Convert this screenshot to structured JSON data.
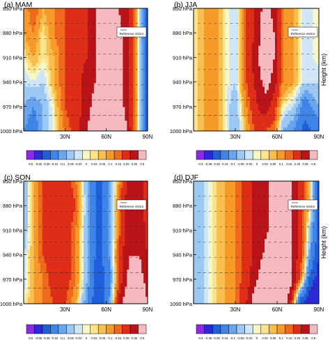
{
  "chart_data": [
    {
      "type": "heatmap",
      "panel_label": "(a) MAM",
      "y_ticks": [
        "850 hPa",
        "880 hPa",
        "910 hPa",
        "940 hPa",
        "970 hPa",
        "1000 hPa"
      ],
      "x_ticks": [
        "30N",
        "60N",
        "90N"
      ],
      "reference_label": "Reference Vector",
      "x_values": [
        0,
        7,
        14,
        22,
        30,
        38,
        46,
        52,
        60,
        68,
        75,
        82,
        90
      ],
      "levels": [
        850,
        880,
        910,
        940,
        970,
        1000
      ],
      "values": [
        [
          0.05,
          0.15,
          0.05,
          0.1,
          0.15,
          0.2,
          0.25,
          0.35,
          0.4,
          0.35,
          0.3,
          0.05,
          -0.3
        ],
        [
          0.05,
          0.1,
          0.0,
          0.1,
          0.15,
          0.2,
          0.25,
          0.35,
          0.4,
          0.4,
          0.3,
          0.05,
          -0.3
        ],
        [
          0.0,
          0.05,
          0.0,
          0.05,
          0.15,
          0.2,
          0.25,
          0.35,
          0.4,
          0.45,
          0.3,
          0.05,
          -0.3
        ],
        [
          -0.05,
          -0.02,
          -0.05,
          0.05,
          0.15,
          0.2,
          0.3,
          0.35,
          0.45,
          0.45,
          0.3,
          0.05,
          -0.3
        ],
        [
          -0.1,
          -0.15,
          -0.1,
          0.0,
          0.15,
          0.2,
          0.3,
          0.4,
          0.5,
          0.45,
          0.3,
          0.05,
          -0.3
        ],
        [
          -0.15,
          -0.2,
          -0.1,
          0.0,
          0.1,
          0.2,
          0.35,
          0.45,
          0.6,
          0.55,
          0.35,
          0.05,
          -0.3
        ]
      ]
    },
    {
      "type": "heatmap",
      "panel_label": "(b) JJA",
      "y_ticks": [
        "850 hPa",
        "880 hPa",
        "910 hPa",
        "940 hPa",
        "970 hPa",
        "1000 hPa"
      ],
      "x_ticks": [
        "30N",
        "60N",
        "90N"
      ],
      "ylabel": "Height (km)",
      "reference_label": "Reference Vector",
      "x_values": [
        0,
        7,
        14,
        22,
        30,
        38,
        46,
        52,
        58,
        64,
        72,
        80,
        90
      ],
      "levels": [
        850,
        880,
        910,
        940,
        970,
        1000
      ],
      "values": [
        [
          0.0,
          0.05,
          0.1,
          0.0,
          -0.05,
          0.15,
          0.3,
          0.4,
          0.3,
          0.1,
          0.05,
          -0.05,
          0.0
        ],
        [
          0.0,
          0.05,
          0.1,
          0.0,
          -0.05,
          0.15,
          0.3,
          0.45,
          0.35,
          0.1,
          0.05,
          -0.05,
          0.0
        ],
        [
          0.0,
          0.05,
          0.1,
          0.0,
          -0.05,
          0.15,
          0.35,
          0.45,
          0.35,
          0.1,
          0.05,
          -0.05,
          0.0
        ],
        [
          0.0,
          0.05,
          0.1,
          0.0,
          -0.05,
          0.15,
          0.3,
          0.4,
          0.3,
          0.1,
          0.05,
          -0.05,
          -0.05
        ],
        [
          0.0,
          0.05,
          0.1,
          0.0,
          -0.1,
          0.1,
          0.25,
          0.3,
          0.2,
          0.0,
          -0.05,
          -0.2,
          -0.1
        ],
        [
          0.0,
          0.05,
          0.1,
          0.0,
          -0.1,
          0.05,
          0.2,
          0.15,
          0.1,
          -0.1,
          -0.15,
          -0.3,
          -0.2
        ]
      ]
    },
    {
      "type": "heatmap",
      "panel_label": "(c) SON",
      "y_ticks": [
        "850 hPa",
        "880 hPa",
        "910 hPa",
        "940 hPa",
        "970 hPa",
        "1000 hPa"
      ],
      "x_ticks": [
        "30N",
        "60N",
        "90N"
      ],
      "reference_label": "Reference Vector",
      "x_values": [
        0,
        7,
        14,
        22,
        30,
        38,
        46,
        54,
        62,
        70,
        77,
        84,
        90
      ],
      "levels": [
        850,
        880,
        910,
        940,
        970,
        1000
      ],
      "values": [
        [
          -0.1,
          0.05,
          0.15,
          0.2,
          0.2,
          0.1,
          -0.1,
          -0.3,
          -0.15,
          0.1,
          0.3,
          0.3,
          0.2
        ],
        [
          -0.1,
          0.05,
          0.15,
          0.2,
          0.25,
          0.15,
          -0.1,
          -0.3,
          -0.15,
          0.15,
          0.35,
          0.3,
          0.2
        ],
        [
          -0.1,
          0.05,
          0.15,
          0.2,
          0.2,
          0.1,
          -0.1,
          -0.3,
          -0.15,
          0.15,
          0.35,
          0.35,
          0.2
        ],
        [
          -0.05,
          0.05,
          0.15,
          0.2,
          0.2,
          0.1,
          -0.1,
          -0.3,
          -0.15,
          0.2,
          0.35,
          0.35,
          0.25
        ],
        [
          -0.05,
          0.05,
          0.1,
          0.2,
          0.2,
          0.1,
          -0.1,
          -0.35,
          -0.2,
          0.2,
          0.4,
          0.4,
          0.3
        ],
        [
          0.0,
          0.05,
          0.1,
          0.15,
          0.15,
          0.05,
          -0.15,
          -0.35,
          -0.15,
          0.3,
          0.5,
          0.5,
          0.35
        ]
      ]
    },
    {
      "type": "heatmap",
      "panel_label": "(d) DJF",
      "y_ticks": [
        "850 hPa",
        "880 hPa",
        "910 hPa",
        "940 hPa",
        "970 hPa",
        "1000 hPa"
      ],
      "x_ticks": [
        "30N",
        "60N",
        "90N"
      ],
      "ylabel": "Height (km)",
      "reference_label": "Reference Vector",
      "x_values": [
        0,
        7,
        14,
        22,
        30,
        38,
        46,
        54,
        62,
        70,
        77,
        84,
        90
      ],
      "levels": [
        850,
        880,
        910,
        940,
        970,
        1000
      ],
      "values": [
        [
          -0.1,
          -0.05,
          0.0,
          0.05,
          0.1,
          0.2,
          0.3,
          0.35,
          0.4,
          0.35,
          0.2,
          0.0,
          -0.3
        ],
        [
          -0.1,
          -0.05,
          0.0,
          0.05,
          0.1,
          0.2,
          0.3,
          0.35,
          0.4,
          0.35,
          0.2,
          0.0,
          -0.3
        ],
        [
          -0.1,
          -0.05,
          0.0,
          0.05,
          0.1,
          0.2,
          0.3,
          0.35,
          0.4,
          0.35,
          0.2,
          -0.1,
          -0.3
        ],
        [
          -0.1,
          -0.05,
          0.0,
          0.05,
          0.1,
          0.2,
          0.3,
          0.4,
          0.45,
          0.35,
          0.2,
          -0.15,
          -0.35
        ],
        [
          -0.1,
          -0.05,
          0.0,
          0.05,
          0.1,
          0.2,
          0.35,
          0.5,
          0.55,
          0.4,
          0.1,
          -0.3,
          -0.4
        ],
        [
          -0.1,
          -0.05,
          0.0,
          0.05,
          0.1,
          0.25,
          0.5,
          0.6,
          0.55,
          0.2,
          -0.35,
          -0.45,
          -0.5
        ]
      ]
    }
  ],
  "colorbar": {
    "labels": [
      "-0.5",
      "-0.35",
      "-0.25",
      "-0.15",
      "-0.1",
      "-0.05",
      "-0.02",
      "0",
      "0.02",
      "0.05",
      "0.1",
      "0.15",
      "0.25",
      "0.35",
      "0.5"
    ],
    "colors": [
      "#8a2be2",
      "#2b2bd6",
      "#1f5fd9",
      "#3f85e8",
      "#6aa5ef",
      "#9cc8f4",
      "#cfe6f7",
      "#f9f6c6",
      "#fae38a",
      "#f9bf4e",
      "#f79a2a",
      "#ef6a1c",
      "#df2e18",
      "#b8141a",
      "#f6b9bf"
    ]
  }
}
